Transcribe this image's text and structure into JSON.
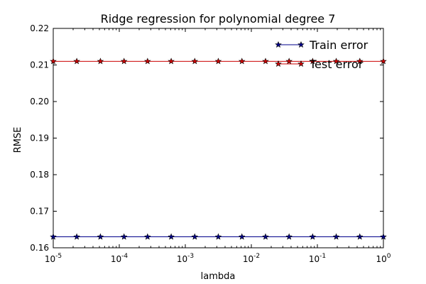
{
  "chart_data": {
    "type": "line",
    "title": "Ridge regression for polynomial degree 7",
    "xlabel": "lambda",
    "ylabel": "RMSE",
    "x_scale": "log",
    "xlim": [
      1e-05,
      1
    ],
    "ylim": [
      0.16,
      0.22
    ],
    "grid": false,
    "legend_position": "top-right",
    "x": [
      1e-05,
      2.27e-05,
      5.18e-05,
      0.000118,
      0.000268,
      0.000611,
      0.00139,
      0.00316,
      0.0072,
      0.0164,
      0.0373,
      0.0848,
      0.193,
      0.439,
      1
    ],
    "x_ticks": [
      {
        "value": 1e-05,
        "base": "10",
        "exp": "-5"
      },
      {
        "value": 0.0001,
        "base": "10",
        "exp": "-4"
      },
      {
        "value": 0.001,
        "base": "10",
        "exp": "-3"
      },
      {
        "value": 0.01,
        "base": "10",
        "exp": "-2"
      },
      {
        "value": 0.1,
        "base": "10",
        "exp": "-1"
      },
      {
        "value": 1,
        "base": "10",
        "exp": "0"
      }
    ],
    "y_ticks": [
      "0.16",
      "0.17",
      "0.18",
      "0.19",
      "0.20",
      "0.21",
      "0.22"
    ],
    "series": [
      {
        "name": "Train error",
        "color": "#00008b",
        "values": [
          0.163,
          0.163,
          0.163,
          0.163,
          0.163,
          0.163,
          0.163,
          0.163,
          0.163,
          0.163,
          0.163,
          0.163,
          0.163,
          0.163,
          0.163
        ]
      },
      {
        "name": "Test error",
        "color": "#cc0000",
        "values": [
          0.211,
          0.211,
          0.211,
          0.211,
          0.211,
          0.211,
          0.211,
          0.211,
          0.211,
          0.211,
          0.211,
          0.211,
          0.211,
          0.211,
          0.211
        ]
      }
    ]
  }
}
